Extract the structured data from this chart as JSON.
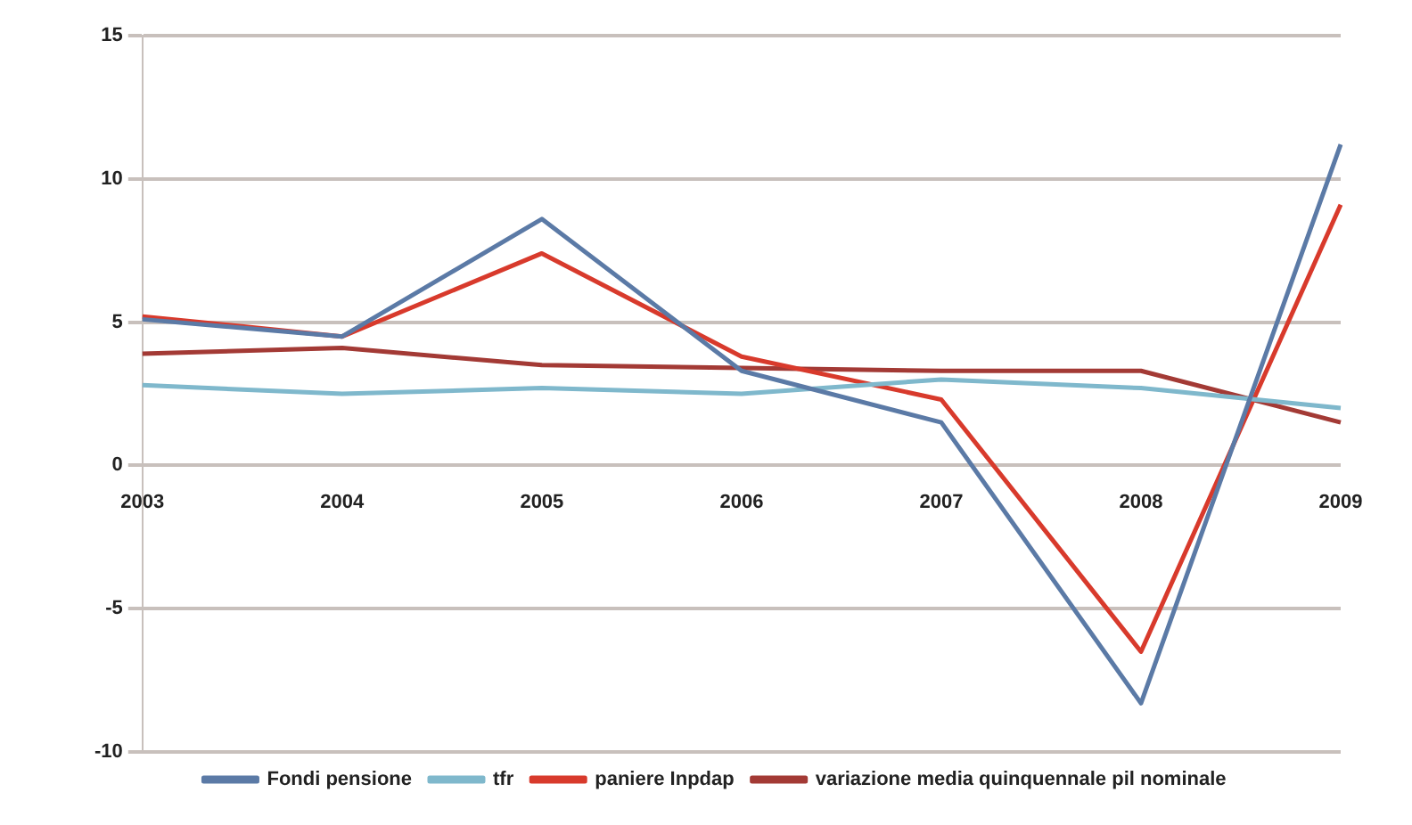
{
  "chart_data": {
    "type": "line",
    "categories": [
      "2003",
      "2004",
      "2005",
      "2006",
      "2007",
      "2008",
      "2009"
    ],
    "series": [
      {
        "name": "Fondi pensione",
        "color": "#5b7aa6",
        "values": [
          5.1,
          4.5,
          8.6,
          3.3,
          1.5,
          -8.3,
          11.2
        ]
      },
      {
        "name": "tfr",
        "color": "#7fb8cc",
        "values": [
          2.8,
          2.5,
          2.7,
          2.5,
          3.0,
          2.7,
          2.0
        ]
      },
      {
        "name": "paniere Inpdap",
        "color": "#d83a2c",
        "values": [
          5.2,
          4.5,
          7.4,
          3.8,
          2.3,
          -6.5,
          9.1
        ]
      },
      {
        "name": "variazione media quinquennale pil nominale",
        "color": "#a33a35",
        "values": [
          3.9,
          4.1,
          3.5,
          3.4,
          3.3,
          3.3,
          1.5
        ]
      }
    ],
    "ylim": [
      -10,
      15
    ],
    "yticks": [
      -10,
      -5,
      0,
      5,
      10,
      15
    ],
    "grid": "y",
    "legend": "bottom",
    "marker": "none",
    "line_style": "solid"
  }
}
